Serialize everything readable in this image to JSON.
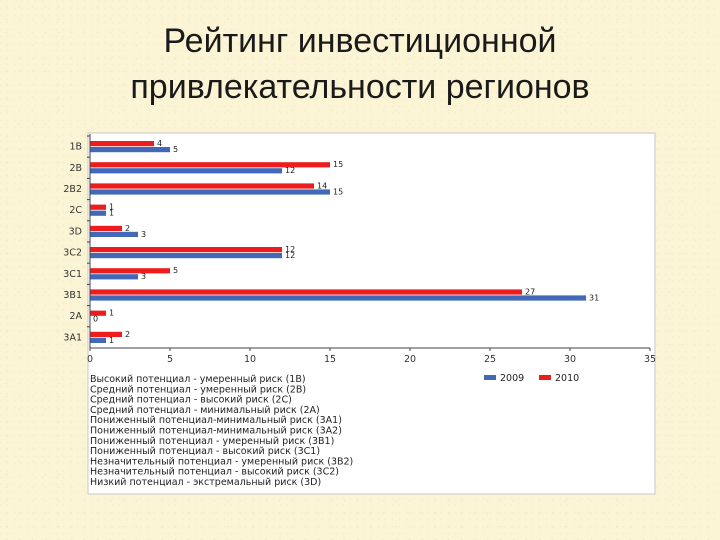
{
  "title": {
    "line1": "Рейтинг инвестиционной",
    "line2": "привлекательности регионов"
  },
  "chart_data": {
    "type": "bar",
    "orientation": "horizontal",
    "categories": [
      "1B",
      "2B",
      "2B2",
      "2C",
      "3D",
      "3C2",
      "3C1",
      "3B1",
      "2A",
      "3A1"
    ],
    "series": [
      {
        "name": "2010",
        "color": "#ee1c1c",
        "values": [
          4,
          15,
          14,
          1,
          2,
          12,
          5,
          27,
          1,
          2
        ]
      },
      {
        "name": "2009",
        "color": "#4169b8",
        "values": [
          5,
          12,
          15,
          1,
          3,
          12,
          3,
          31,
          0,
          1
        ]
      }
    ],
    "xlim": [
      0,
      35
    ],
    "xticks": [
      0,
      5,
      10,
      15,
      20,
      25,
      30,
      35
    ],
    "grid": false,
    "legend_entries": [
      {
        "name": "2009",
        "color": "#4169b8"
      },
      {
        "name": "2010",
        "color": "#ee1c1c"
      }
    ],
    "legend_position": "bottom",
    "notes": [
      "Высокий потенциал - умеренный риск (1В)",
      "Средний потенциал - умеренный риск (2В)",
      "Средний потенциал - высокий риск (2С)",
      "Средний потенциал - минимальный риск (2А)",
      "Пониженный потенциал-минимальный риск (3А1)",
      "Пониженный потенциал-минимальный риск (3А2)",
      "Пониженный потенциал - умеренный риск (3В1)",
      "Пониженный потенциал - высокий риск (3С1)",
      "Незначительный потенциал - умеренный риск (3В2)",
      "Незначительный потенциал - высокий риск (3С2)",
      "Низкий потенциал - экстремальный риск (3D)"
    ]
  }
}
